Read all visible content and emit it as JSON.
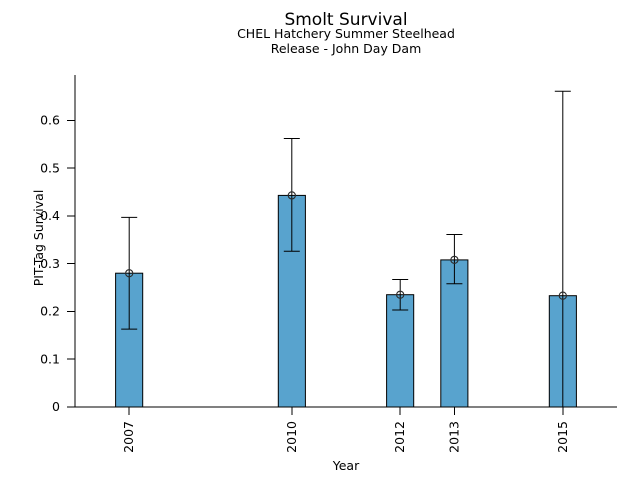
{
  "chart_data": {
    "type": "bar",
    "title": "Smolt Survival",
    "subtitle": [
      "CHEL Hatchery Summer Steelhead",
      "Release - John Day Dam"
    ],
    "xlabel": "Year",
    "ylabel": "PIT-Tag Survival",
    "categories": [
      "2007",
      "2010",
      "2012",
      "2013",
      "2015"
    ],
    "x_numeric": [
      2007,
      2010,
      2012,
      2013,
      2015
    ],
    "values": [
      0.28,
      0.443,
      0.235,
      0.308,
      0.233
    ],
    "error_low": [
      0.163,
      0.326,
      0.203,
      0.258,
      0.0
    ],
    "error_high": [
      0.397,
      0.562,
      0.267,
      0.361,
      0.661
    ],
    "error_low_cap": [
      true,
      true,
      true,
      true,
      false
    ],
    "point_marker": "open-circle",
    "yticks": [
      0,
      0.1,
      0.2,
      0.3,
      0.4,
      0.5,
      0.6
    ],
    "ytick_labels": [
      "0",
      "0.1",
      "0.2",
      "0.3",
      "0.4",
      "0.5",
      "0.6"
    ],
    "ylim": [
      0,
      0.695
    ],
    "xlim": [
      2006,
      2016
    ],
    "bar_width_years": 0.5,
    "bar_color": "#58a3ce",
    "bar_edge_color": "#000000",
    "error_color": "#000000",
    "marker_color": "#2b2b2b",
    "axis_color": "#000000",
    "grid": false,
    "legend": false
  }
}
